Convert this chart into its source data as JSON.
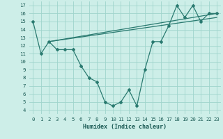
{
  "zigzag_x": [
    0,
    1,
    2,
    3,
    4,
    5,
    6,
    7,
    8,
    9,
    10,
    11,
    12,
    13,
    14,
    15,
    16,
    17,
    18,
    19,
    20,
    21,
    22,
    23
  ],
  "zigzag_y": [
    15,
    11,
    12.5,
    11.5,
    11.5,
    11.5,
    9.5,
    8,
    7.5,
    5,
    4.5,
    5,
    6.5,
    4.5,
    9,
    12.5,
    12.5,
    14.5,
    17,
    15.5,
    17,
    15,
    16,
    16
  ],
  "line2_x": [
    2,
    23
  ],
  "line2_y": [
    12.5,
    16.0
  ],
  "line3_x": [
    2,
    23
  ],
  "line3_y": [
    12.5,
    15.5
  ],
  "line_color": "#2a7a70",
  "bg_color": "#cdeee8",
  "grid_color": "#9fd4cc",
  "xlabel": "Humidex (Indice chaleur)",
  "xlim": [
    -0.5,
    23.5
  ],
  "ylim": [
    3.5,
    17.5
  ],
  "xticks": [
    0,
    1,
    2,
    3,
    4,
    5,
    6,
    7,
    8,
    9,
    10,
    11,
    12,
    13,
    14,
    15,
    16,
    17,
    18,
    19,
    20,
    21,
    22,
    23
  ],
  "yticks": [
    4,
    5,
    6,
    7,
    8,
    9,
    10,
    11,
    12,
    13,
    14,
    15,
    16,
    17
  ],
  "tick_fontsize": 5.2,
  "xlabel_fontsize": 6.0
}
